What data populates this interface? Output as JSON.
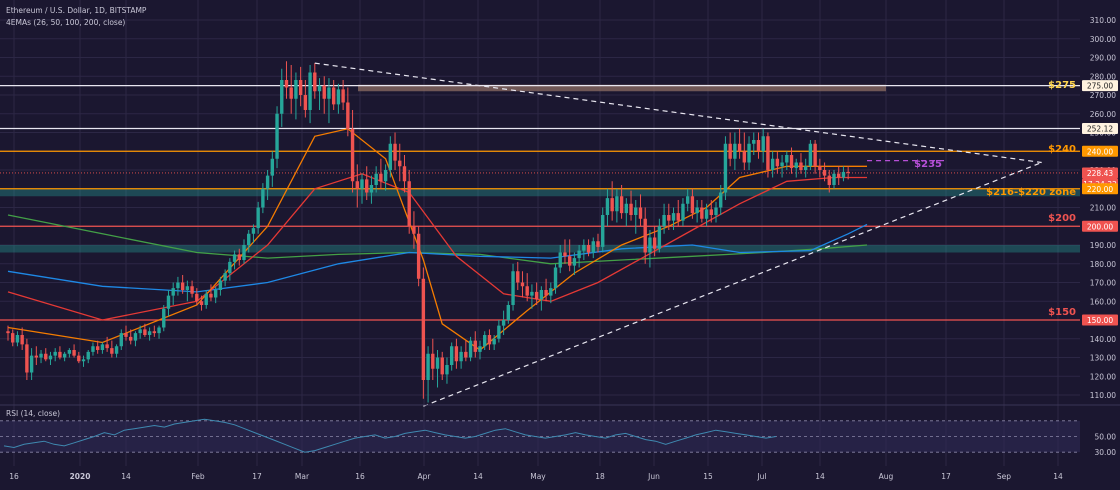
{
  "header": {
    "title": "Ethereum / U.S. Dollar, 1D, BITSTAMP",
    "indicators": "4EMAs (26, 50, 100, 200, close)",
    "rsi_label": "RSI (14, close)"
  },
  "colors": {
    "background": "#1b1730",
    "grid": "#2c2745",
    "candle_up": "#26a69a",
    "candle_down": "#ef5350",
    "ema26": "#f57c00",
    "ema50": "#e53935",
    "ema100": "#1e88e5",
    "ema200": "#43a047",
    "level_orange": "#ff9800",
    "level_red": "#ef5350",
    "level_yellow": "#ffd54f",
    "zone_teal": "#26a69a",
    "zone_gold": "#8d6e63",
    "rsi_line": "#3f89b0",
    "target_purple": "#b54fd6"
  },
  "chart_data": {
    "type": "candlestick",
    "y_axis_ticks": [
      "310.00",
      "300.00",
      "290.00",
      "280.00",
      "270.00",
      "260.00",
      "250.00",
      "240.00",
      "230.00",
      "220.00",
      "210.00",
      "200.00",
      "190.00",
      "180.00",
      "170.00",
      "160.00",
      "150.00",
      "140.00",
      "130.00",
      "120.00",
      "110.00"
    ],
    "ylim": [
      105,
      312
    ],
    "x_axis_ticks": [
      "16",
      "2020",
      "14",
      "Feb",
      "17",
      "Mar",
      "16",
      "Apr",
      "14",
      "May",
      "18",
      "Jun",
      "15",
      "Jul",
      "14",
      "Aug",
      "17",
      "Sep",
      "14"
    ],
    "price_badges": [
      {
        "value": 275,
        "label": "275.00"
      },
      {
        "value": 252.12,
        "label": "252.12"
      },
      {
        "value": 240,
        "label": "240.00"
      },
      {
        "value": 228.43,
        "label": "228.43"
      },
      {
        "value": 225,
        "label": "17:24:32"
      },
      {
        "value": 220,
        "label": "220.00"
      },
      {
        "value": 200,
        "label": "200.00"
      },
      {
        "value": 150,
        "label": "150.00"
      }
    ],
    "levels": [
      {
        "value": 275,
        "label": "$275",
        "color": "#ffd54f"
      },
      {
        "value": 240,
        "label": "$240",
        "color": "#ff9800"
      },
      {
        "value": 235,
        "label": "$235",
        "color": "#b54fd6"
      },
      {
        "value": 218,
        "label": "$216-$220 zone",
        "color": "#ff9800"
      },
      {
        "value": 200,
        "label": "$200",
        "color": "#ef5350"
      },
      {
        "value": 150,
        "label": "$150",
        "color": "#ef5350"
      }
    ],
    "zones": [
      {
        "from": 272,
        "to": 275.5,
        "start_index": 100
      },
      {
        "from": 216,
        "to": 220
      },
      {
        "from": 186,
        "to": 190
      }
    ],
    "rsi_ticks": [
      "50.00",
      "30.00"
    ],
    "ohlc": [
      [
        144,
        147,
        139,
        143
      ],
      [
        143,
        145,
        136,
        138
      ],
      [
        138,
        144,
        136,
        142
      ],
      [
        142,
        146,
        134,
        137
      ],
      [
        137,
        140,
        118,
        122
      ],
      [
        122,
        135,
        118,
        131
      ],
      [
        131,
        136,
        126,
        130
      ],
      [
        130,
        134,
        127,
        132
      ],
      [
        132,
        135,
        128,
        129
      ],
      [
        129,
        133,
        126,
        131
      ],
      [
        131,
        135,
        128,
        133
      ],
      [
        133,
        136,
        129,
        130
      ],
      [
        130,
        133,
        128,
        132
      ],
      [
        132,
        135,
        130,
        134
      ],
      [
        134,
        137,
        130,
        131
      ],
      [
        131,
        133,
        127,
        128
      ],
      [
        128,
        131,
        125,
        129
      ],
      [
        129,
        134,
        127,
        133
      ],
      [
        133,
        138,
        131,
        136
      ],
      [
        136,
        139,
        132,
        134
      ],
      [
        134,
        138,
        132,
        137
      ],
      [
        137,
        141,
        133,
        135
      ],
      [
        135,
        139,
        130,
        132
      ],
      [
        132,
        137,
        130,
        136
      ],
      [
        136,
        145,
        134,
        143
      ],
      [
        143,
        147,
        139,
        141
      ],
      [
        141,
        145,
        137,
        139
      ],
      [
        139,
        144,
        136,
        143
      ],
      [
        143,
        147,
        140,
        145
      ],
      [
        145,
        148,
        141,
        142
      ],
      [
        142,
        146,
        139,
        144
      ],
      [
        144,
        147,
        141,
        143
      ],
      [
        143,
        147,
        140,
        146
      ],
      [
        146,
        158,
        144,
        156
      ],
      [
        156,
        166,
        152,
        163
      ],
      [
        163,
        170,
        158,
        167
      ],
      [
        167,
        173,
        163,
        170
      ],
      [
        170,
        174,
        164,
        166
      ],
      [
        166,
        171,
        160,
        168
      ],
      [
        168,
        171,
        162,
        164
      ],
      [
        164,
        167,
        158,
        160
      ],
      [
        160,
        163,
        155,
        158
      ],
      [
        158,
        166,
        156,
        164
      ],
      [
        164,
        169,
        160,
        162
      ],
      [
        162,
        168,
        159,
        166
      ],
      [
        166,
        173,
        163,
        171
      ],
      [
        171,
        177,
        168,
        175
      ],
      [
        175,
        183,
        171,
        181
      ],
      [
        181,
        187,
        177,
        185
      ],
      [
        185,
        188,
        179,
        182
      ],
      [
        182,
        193,
        180,
        190
      ],
      [
        190,
        198,
        186,
        196
      ],
      [
        196,
        201,
        191,
        199
      ],
      [
        199,
        213,
        196,
        210
      ],
      [
        210,
        223,
        207,
        220
      ],
      [
        220,
        230,
        214,
        227
      ],
      [
        227,
        240,
        221,
        236
      ],
      [
        236,
        264,
        231,
        260
      ],
      [
        260,
        284,
        253,
        278
      ],
      [
        278,
        288,
        268,
        274
      ],
      [
        274,
        286,
        260,
        268
      ],
      [
        268,
        282,
        257,
        278
      ],
      [
        278,
        285,
        264,
        270
      ],
      [
        270,
        278,
        258,
        262
      ],
      [
        262,
        286,
        255,
        282
      ],
      [
        282,
        287,
        268,
        272
      ],
      [
        272,
        279,
        262,
        275
      ],
      [
        275,
        280,
        260,
        268
      ],
      [
        268,
        279,
        255,
        274
      ],
      [
        274,
        278,
        262,
        265
      ],
      [
        265,
        276,
        260,
        273
      ],
      [
        273,
        278,
        262,
        266
      ],
      [
        266,
        274,
        248,
        252
      ],
      [
        252,
        262,
        218,
        224
      ],
      [
        224,
        233,
        210,
        220
      ],
      [
        220,
        228,
        212,
        225
      ],
      [
        225,
        232,
        214,
        218
      ],
      [
        218,
        227,
        212,
        222
      ],
      [
        222,
        232,
        218,
        228
      ],
      [
        228,
        236,
        220,
        224
      ],
      [
        224,
        233,
        219,
        230
      ],
      [
        230,
        248,
        226,
        244
      ],
      [
        244,
        250,
        230,
        235
      ],
      [
        235,
        244,
        224,
        232
      ],
      [
        232,
        238,
        218,
        224
      ],
      [
        224,
        230,
        196,
        200
      ],
      [
        200,
        208,
        188,
        196
      ],
      [
        196,
        200,
        168,
        172
      ],
      [
        172,
        178,
        108,
        118
      ],
      [
        118,
        136,
        106,
        132
      ],
      [
        132,
        140,
        118,
        124
      ],
      [
        124,
        134,
        114,
        130
      ],
      [
        130,
        133,
        118,
        121
      ],
      [
        121,
        130,
        116,
        126
      ],
      [
        126,
        138,
        123,
        136
      ],
      [
        136,
        140,
        124,
        128
      ],
      [
        128,
        136,
        124,
        133
      ],
      [
        133,
        139,
        128,
        130
      ],
      [
        130,
        141,
        128,
        139
      ],
      [
        139,
        144,
        130,
        133
      ],
      [
        133,
        139,
        129,
        136
      ],
      [
        136,
        144,
        134,
        142
      ],
      [
        142,
        145,
        134,
        137
      ],
      [
        137,
        142,
        134,
        140
      ],
      [
        140,
        150,
        138,
        147
      ],
      [
        147,
        155,
        142,
        150
      ],
      [
        150,
        160,
        148,
        158
      ],
      [
        158,
        180,
        155,
        176
      ],
      [
        176,
        181,
        166,
        170
      ],
      [
        170,
        176,
        162,
        168
      ],
      [
        168,
        175,
        160,
        163
      ],
      [
        163,
        169,
        156,
        165
      ],
      [
        165,
        170,
        158,
        161
      ],
      [
        161,
        168,
        155,
        166
      ],
      [
        166,
        172,
        160,
        163
      ],
      [
        163,
        170,
        159,
        167
      ],
      [
        167,
        180,
        164,
        178
      ],
      [
        178,
        190,
        175,
        186
      ],
      [
        186,
        193,
        180,
        184
      ],
      [
        184,
        193,
        176,
        179
      ],
      [
        179,
        186,
        174,
        183
      ],
      [
        183,
        190,
        178,
        187
      ],
      [
        187,
        193,
        182,
        190
      ],
      [
        190,
        193,
        184,
        186
      ],
      [
        186,
        194,
        183,
        192
      ],
      [
        192,
        196,
        186,
        189
      ],
      [
        189,
        210,
        186,
        206
      ],
      [
        206,
        220,
        200,
        215
      ],
      [
        215,
        224,
        203,
        208
      ],
      [
        208,
        220,
        202,
        216
      ],
      [
        216,
        222,
        204,
        207
      ],
      [
        207,
        215,
        200,
        212
      ],
      [
        212,
        219,
        203,
        206
      ],
      [
        206,
        214,
        196,
        210
      ],
      [
        210,
        217,
        200,
        204
      ],
      [
        204,
        210,
        180,
        186
      ],
      [
        186,
        198,
        178,
        194
      ],
      [
        194,
        200,
        184,
        188
      ],
      [
        188,
        204,
        186,
        200
      ],
      [
        200,
        212,
        196,
        206
      ],
      [
        206,
        212,
        198,
        203
      ],
      [
        203,
        210,
        198,
        207
      ],
      [
        207,
        214,
        200,
        203
      ],
      [
        203,
        215,
        200,
        212
      ],
      [
        212,
        220,
        208,
        216
      ],
      [
        216,
        220,
        204,
        207
      ],
      [
        207,
        214,
        202,
        210
      ],
      [
        210,
        214,
        202,
        204
      ],
      [
        204,
        212,
        200,
        209
      ],
      [
        209,
        214,
        202,
        206
      ],
      [
        206,
        213,
        202,
        210
      ],
      [
        210,
        222,
        206,
        218
      ],
      [
        218,
        248,
        214,
        244
      ],
      [
        244,
        250,
        232,
        236
      ],
      [
        236,
        250,
        230,
        244
      ],
      [
        244,
        252,
        236,
        240
      ],
      [
        240,
        250,
        230,
        234
      ],
      [
        234,
        248,
        230,
        244
      ],
      [
        244,
        250,
        238,
        246
      ],
      [
        246,
        250,
        236,
        240
      ],
      [
        240,
        252,
        234,
        248
      ],
      [
        248,
        250,
        226,
        230
      ],
      [
        230,
        240,
        226,
        236
      ],
      [
        236,
        240,
        228,
        232
      ],
      [
        232,
        238,
        226,
        234
      ],
      [
        234,
        240,
        230,
        238
      ],
      [
        238,
        242,
        228,
        231
      ],
      [
        231,
        236,
        226,
        234
      ],
      [
        234,
        239,
        228,
        230
      ],
      [
        230,
        236,
        226,
        232
      ],
      [
        232,
        246,
        230,
        244
      ],
      [
        244,
        246,
        228,
        232
      ],
      [
        232,
        236,
        226,
        230
      ],
      [
        230,
        234,
        224,
        227
      ],
      [
        227,
        230,
        218,
        222
      ],
      [
        222,
        230,
        220,
        228
      ],
      [
        228,
        232,
        222,
        226
      ],
      [
        226,
        232,
        224,
        229
      ],
      [
        229,
        232,
        225,
        228.43
      ]
    ],
    "ema26": [
      [
        0,
        146
      ],
      [
        20,
        138
      ],
      [
        40,
        158
      ],
      [
        55,
        200
      ],
      [
        65,
        248
      ],
      [
        72,
        252
      ],
      [
        80,
        236
      ],
      [
        88,
        182
      ],
      [
        92,
        148
      ],
      [
        100,
        134
      ],
      [
        110,
        155
      ],
      [
        120,
        175
      ],
      [
        130,
        190
      ],
      [
        140,
        200
      ],
      [
        148,
        210
      ],
      [
        155,
        226
      ],
      [
        165,
        232
      ],
      [
        182,
        232
      ]
    ],
    "ema50": [
      [
        0,
        165
      ],
      [
        20,
        150
      ],
      [
        40,
        160
      ],
      [
        55,
        190
      ],
      [
        65,
        220
      ],
      [
        75,
        228
      ],
      [
        85,
        218
      ],
      [
        95,
        184
      ],
      [
        105,
        164
      ],
      [
        115,
        160
      ],
      [
        125,
        170
      ],
      [
        135,
        184
      ],
      [
        145,
        198
      ],
      [
        155,
        212
      ],
      [
        165,
        224
      ],
      [
        175,
        226
      ],
      [
        182,
        226
      ]
    ],
    "ema100": [
      [
        0,
        176
      ],
      [
        20,
        168
      ],
      [
        40,
        165
      ],
      [
        55,
        170
      ],
      [
        70,
        180
      ],
      [
        85,
        186
      ],
      [
        100,
        184
      ],
      [
        115,
        183
      ],
      [
        130,
        188
      ],
      [
        145,
        190
      ],
      [
        155,
        186
      ],
      [
        170,
        187
      ],
      [
        178,
        196
      ],
      [
        182,
        201
      ]
    ],
    "ema200": [
      [
        0,
        206
      ],
      [
        20,
        196
      ],
      [
        40,
        186
      ],
      [
        55,
        183
      ],
      [
        70,
        185
      ],
      [
        85,
        186
      ],
      [
        100,
        185
      ],
      [
        115,
        180
      ],
      [
        130,
        182
      ],
      [
        145,
        184
      ],
      [
        160,
        186
      ],
      [
        172,
        188
      ],
      [
        182,
        190
      ]
    ],
    "trendline_upper": {
      "from": [
        65,
        287
      ],
      "to": [
        219,
        234
      ]
    },
    "trendline_lower": {
      "from": [
        88,
        104
      ],
      "to": [
        219,
        234
      ]
    },
    "rsi": [
      38,
      36,
      40,
      42,
      44,
      40,
      38,
      42,
      46,
      50,
      55,
      52,
      58,
      60,
      62,
      64,
      62,
      66,
      68,
      70,
      72,
      70,
      68,
      65,
      60,
      55,
      50,
      45,
      40,
      35,
      30,
      32,
      36,
      40,
      44,
      48,
      50,
      52,
      48,
      50,
      54,
      56,
      58,
      55,
      52,
      50,
      48,
      50,
      54,
      58,
      60,
      56,
      52,
      50,
      48,
      50,
      52,
      55,
      52,
      50,
      48,
      52,
      54,
      50,
      46,
      44,
      40,
      44,
      48,
      52,
      55,
      58,
      56,
      54,
      52,
      50,
      48,
      50
    ]
  }
}
